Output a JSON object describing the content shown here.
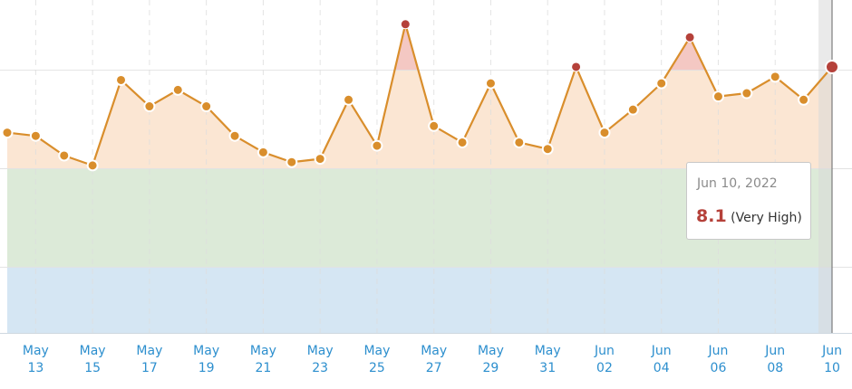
{
  "chart_data": {
    "type": "line",
    "categories": [
      null,
      "May 13",
      null,
      "May 15",
      null,
      "May 17",
      null,
      "May 19",
      null,
      "May 21",
      null,
      "May 23",
      null,
      "May 25",
      null,
      "May 27",
      null,
      "May 29",
      null,
      "May 31",
      null,
      "Jun 02",
      null,
      "Jun 04",
      null,
      "Jun 06",
      null,
      "Jun 08",
      null,
      "Jun 10"
    ],
    "values": [
      6.1,
      6.0,
      5.4,
      5.1,
      7.7,
      6.9,
      7.4,
      6.9,
      6.0,
      5.5,
      5.2,
      5.3,
      7.1,
      5.7,
      9.4,
      6.3,
      5.8,
      7.6,
      5.8,
      5.6,
      8.1,
      6.1,
      6.8,
      7.6,
      9.0,
      7.2,
      7.3,
      7.8,
      7.1,
      8.1
    ],
    "color": "#d98e2c",
    "high_color": "#b5413a",
    "ylim": [
      0,
      10
    ],
    "bands": [
      {
        "from": 0,
        "to": 2,
        "color": "#d5e6f3"
      },
      {
        "from": 2,
        "to": 5,
        "color": "#dcead8"
      },
      {
        "from": 5,
        "to": 8,
        "color": "#fbe6d3"
      },
      {
        "from": 8,
        "to": 10,
        "color": "#f4c8c3"
      }
    ],
    "tooltip": {
      "date": "Jun 10, 2022",
      "label": "(Very High)"
    }
  }
}
